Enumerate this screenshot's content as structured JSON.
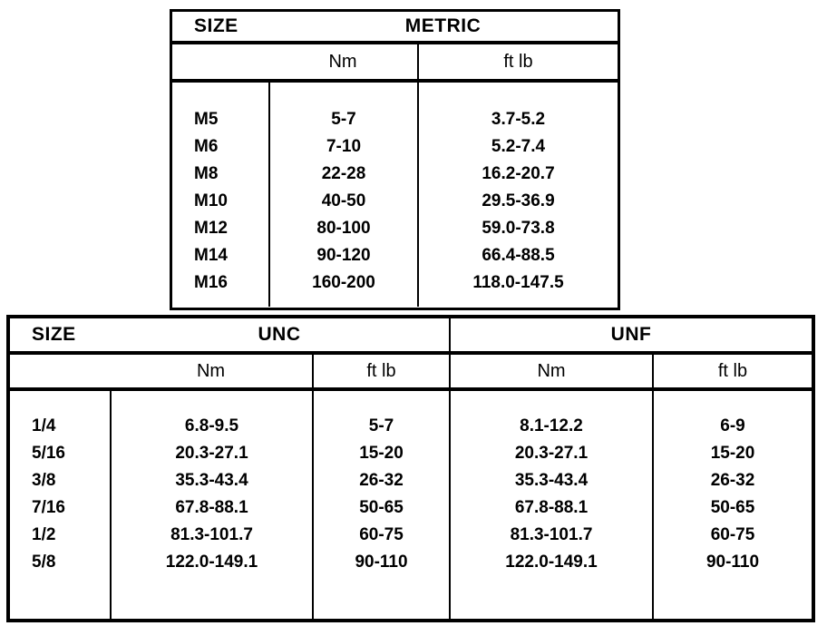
{
  "page": {
    "background": "#ffffff",
    "text_color": "#000000",
    "border_color": "#000000"
  },
  "metric_table": {
    "size_header": "SIZE",
    "group_header": "METRIC",
    "unit_headers": {
      "nm": "Nm",
      "ftlb": "ft lb"
    },
    "rows": [
      {
        "size": "M5",
        "nm": "5-7",
        "ftlb": "3.7-5.2"
      },
      {
        "size": "M6",
        "nm": "7-10",
        "ftlb": "5.2-7.4"
      },
      {
        "size": "M8",
        "nm": "22-28",
        "ftlb": "16.2-20.7"
      },
      {
        "size": "M10",
        "nm": "40-50",
        "ftlb": "29.5-36.9"
      },
      {
        "size": "M12",
        "nm": "80-100",
        "ftlb": "59.0-73.8"
      },
      {
        "size": "M14",
        "nm": "90-120",
        "ftlb": "66.4-88.5"
      },
      {
        "size": "M16",
        "nm": "160-200",
        "ftlb": "118.0-147.5"
      }
    ]
  },
  "imperial_table": {
    "size_header": "SIZE",
    "group_headers": {
      "unc": "UNC",
      "unf": "UNF"
    },
    "unit_headers": {
      "unc_nm": "Nm",
      "unc_ftlb": "ft lb",
      "unf_nm": "Nm",
      "unf_ftlb": "ft lb"
    },
    "rows": [
      {
        "size": "1/4",
        "unc_nm": "6.8-9.5",
        "unc_ftlb": "5-7",
        "unf_nm": "8.1-12.2",
        "unf_ftlb": "6-9"
      },
      {
        "size": "5/16",
        "unc_nm": "20.3-27.1",
        "unc_ftlb": "15-20",
        "unf_nm": "20.3-27.1",
        "unf_ftlb": "15-20"
      },
      {
        "size": "3/8",
        "unc_nm": "35.3-43.4",
        "unc_ftlb": "26-32",
        "unf_nm": "35.3-43.4",
        "unf_ftlb": "26-32"
      },
      {
        "size": "7/16",
        "unc_nm": "67.8-88.1",
        "unc_ftlb": "50-65",
        "unf_nm": "67.8-88.1",
        "unf_ftlb": "50-65"
      },
      {
        "size": "1/2",
        "unc_nm": "81.3-101.7",
        "unc_ftlb": "60-75",
        "unf_nm": "81.3-101.7",
        "unf_ftlb": "60-75"
      },
      {
        "size": "5/8",
        "unc_nm": "122.0-149.1",
        "unc_ftlb": "90-110",
        "unf_nm": "122.0-149.1",
        "unf_ftlb": "90-110"
      }
    ]
  }
}
